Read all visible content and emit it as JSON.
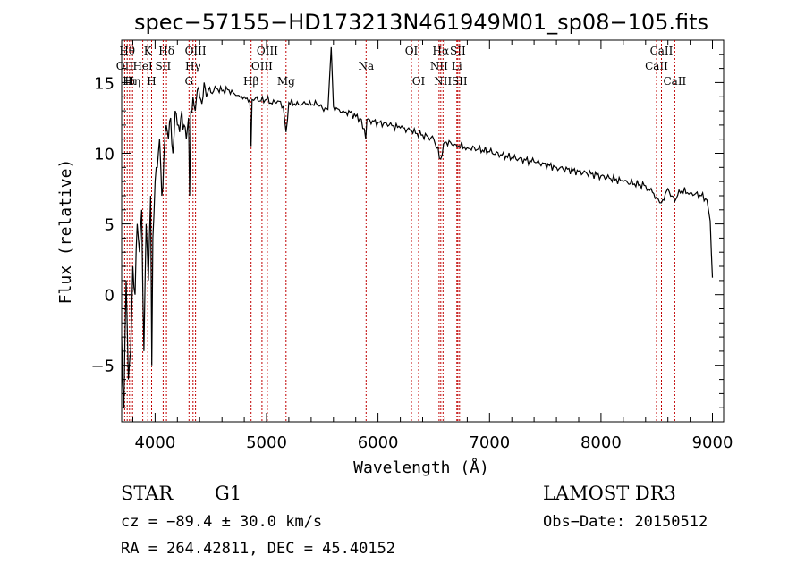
{
  "chart_data": {
    "type": "line",
    "title": "spec−57155−HD173213N461949M01_sp08−105.fits",
    "xlabel": "Wavelength (Å)",
    "ylabel": "Flux (relative)",
    "xlim": [
      3700,
      9100
    ],
    "ylim": [
      -9,
      18
    ],
    "x_ticks": [
      4000,
      5000,
      6000,
      7000,
      8000,
      9000
    ],
    "x_tick_labels": [
      "4000",
      "5000",
      "6000",
      "7000",
      "8000",
      "9000"
    ],
    "y_ticks": [
      -5,
      0,
      5,
      10,
      15
    ],
    "y_tick_labels": [
      "−5",
      "0",
      "5",
      "10",
      "15"
    ],
    "grid": false,
    "series": [
      {
        "name": "spectrum",
        "x": [
          3700,
          3720,
          3740,
          3760,
          3780,
          3800,
          3820,
          3840,
          3860,
          3880,
          3900,
          3920,
          3940,
          3960,
          3970,
          3980,
          4000,
          4020,
          4040,
          4060,
          4080,
          4100,
          4120,
          4140,
          4160,
          4180,
          4200,
          4220,
          4240,
          4260,
          4280,
          4300,
          4310,
          4320,
          4340,
          4360,
          4380,
          4400,
          4420,
          4440,
          4460,
          4480,
          4500,
          4550,
          4600,
          4650,
          4700,
          4750,
          4800,
          4850,
          4861,
          4870,
          4900,
          4950,
          5000,
          5050,
          5100,
          5150,
          5175,
          5200,
          5250,
          5300,
          5350,
          5400,
          5450,
          5500,
          5550,
          5580,
          5600,
          5650,
          5700,
          5750,
          5800,
          5850,
          5890,
          5900,
          5950,
          6000,
          6100,
          6200,
          6300,
          6350,
          6400,
          6500,
          6563,
          6600,
          6700,
          6800,
          6900,
          7000,
          7200,
          7400,
          7600,
          7800,
          8000,
          8200,
          8400,
          8498,
          8542,
          8600,
          8662,
          8700,
          8800,
          8900,
          8950,
          8980,
          9000
        ],
        "y": [
          -3,
          -8,
          1,
          -6,
          -4,
          2,
          0,
          5,
          3,
          6,
          -4,
          5,
          1,
          7,
          -5,
          4,
          8,
          9,
          11,
          7,
          10,
          12,
          11,
          12.5,
          10,
          13,
          12,
          11.5,
          13,
          12,
          11,
          12.5,
          7,
          13,
          14,
          13,
          14.5,
          14,
          13.5,
          15,
          14,
          14.5,
          14.3,
          14.6,
          14.4,
          14.5,
          14.3,
          14.1,
          14,
          13.8,
          10.5,
          13.8,
          13.9,
          13.7,
          13.8,
          13.5,
          13.7,
          13.3,
          11.5,
          13.6,
          13.5,
          13.4,
          13.5,
          13.4,
          13.5,
          13.2,
          13.1,
          17.5,
          13.3,
          13.1,
          12.9,
          12.9,
          12.6,
          12.4,
          11,
          12.4,
          12.3,
          12.2,
          12,
          11.8,
          11.6,
          11.4,
          11.3,
          11,
          9.6,
          10.8,
          10.6,
          10.4,
          10.3,
          10.1,
          9.7,
          9.4,
          9,
          8.7,
          8.4,
          8,
          7.7,
          6.9,
          6.5,
          7.5,
          6.6,
          7.4,
          7.2,
          7,
          6.7,
          5.2,
          1.2
        ]
      }
    ],
    "lines": [
      {
        "x": 3727,
        "label": "OII",
        "row": 1
      },
      {
        "x": 3750,
        "label": "Hθ",
        "row": 0
      },
      {
        "x": 3771,
        "label": "Hι",
        "row": 2
      },
      {
        "x": 3798,
        "label": "Hη",
        "row": 2
      },
      {
        "x": 3889,
        "label": "HeI",
        "row": 1
      },
      {
        "x": 3934,
        "label": "K",
        "row": 0
      },
      {
        "x": 3969,
        "label": "H",
        "row": 2
      },
      {
        "x": 4072,
        "label": "SII",
        "row": 1
      },
      {
        "x": 4102,
        "label": "Hδ",
        "row": 0
      },
      {
        "x": 4304,
        "label": "G",
        "row": 2
      },
      {
        "x": 4340,
        "label": "Hγ",
        "row": 1
      },
      {
        "x": 4363,
        "label": "OIII",
        "row": 0
      },
      {
        "x": 4861,
        "label": "Hβ",
        "row": 2
      },
      {
        "x": 4959,
        "label": "OIII",
        "row": 1
      },
      {
        "x": 5007,
        "label": "OIII",
        "row": 0
      },
      {
        "x": 5175,
        "label": "Mg",
        "row": 2
      },
      {
        "x": 5893,
        "label": "Na",
        "row": 1
      },
      {
        "x": 6300,
        "label": "OI",
        "row": 0
      },
      {
        "x": 6364,
        "label": "OI",
        "row": 2
      },
      {
        "x": 6548,
        "label": "NII",
        "row": 1
      },
      {
        "x": 6563,
        "label": "Hα",
        "row": 0
      },
      {
        "x": 6583,
        "label": "NII",
        "row": 2
      },
      {
        "x": 6707,
        "label": "Li",
        "row": 1
      },
      {
        "x": 6716,
        "label": "SII",
        "row": 0
      },
      {
        "x": 6731,
        "label": "SII",
        "row": 2
      },
      {
        "x": 8498,
        "label": "CaII",
        "row": 1
      },
      {
        "x": 8542,
        "label": "CaII",
        "row": 0
      },
      {
        "x": 8662,
        "label": "CaII",
        "row": 2
      }
    ]
  },
  "info": {
    "object_class": "STAR",
    "subclass": "G1",
    "redshift": "cz = −89.4 ± 30.0 km/s",
    "coords": "RA = 264.42811, DEC =  45.40152",
    "survey": "LAMOST DR3",
    "obs_date": "Obs−Date: 20150512"
  }
}
